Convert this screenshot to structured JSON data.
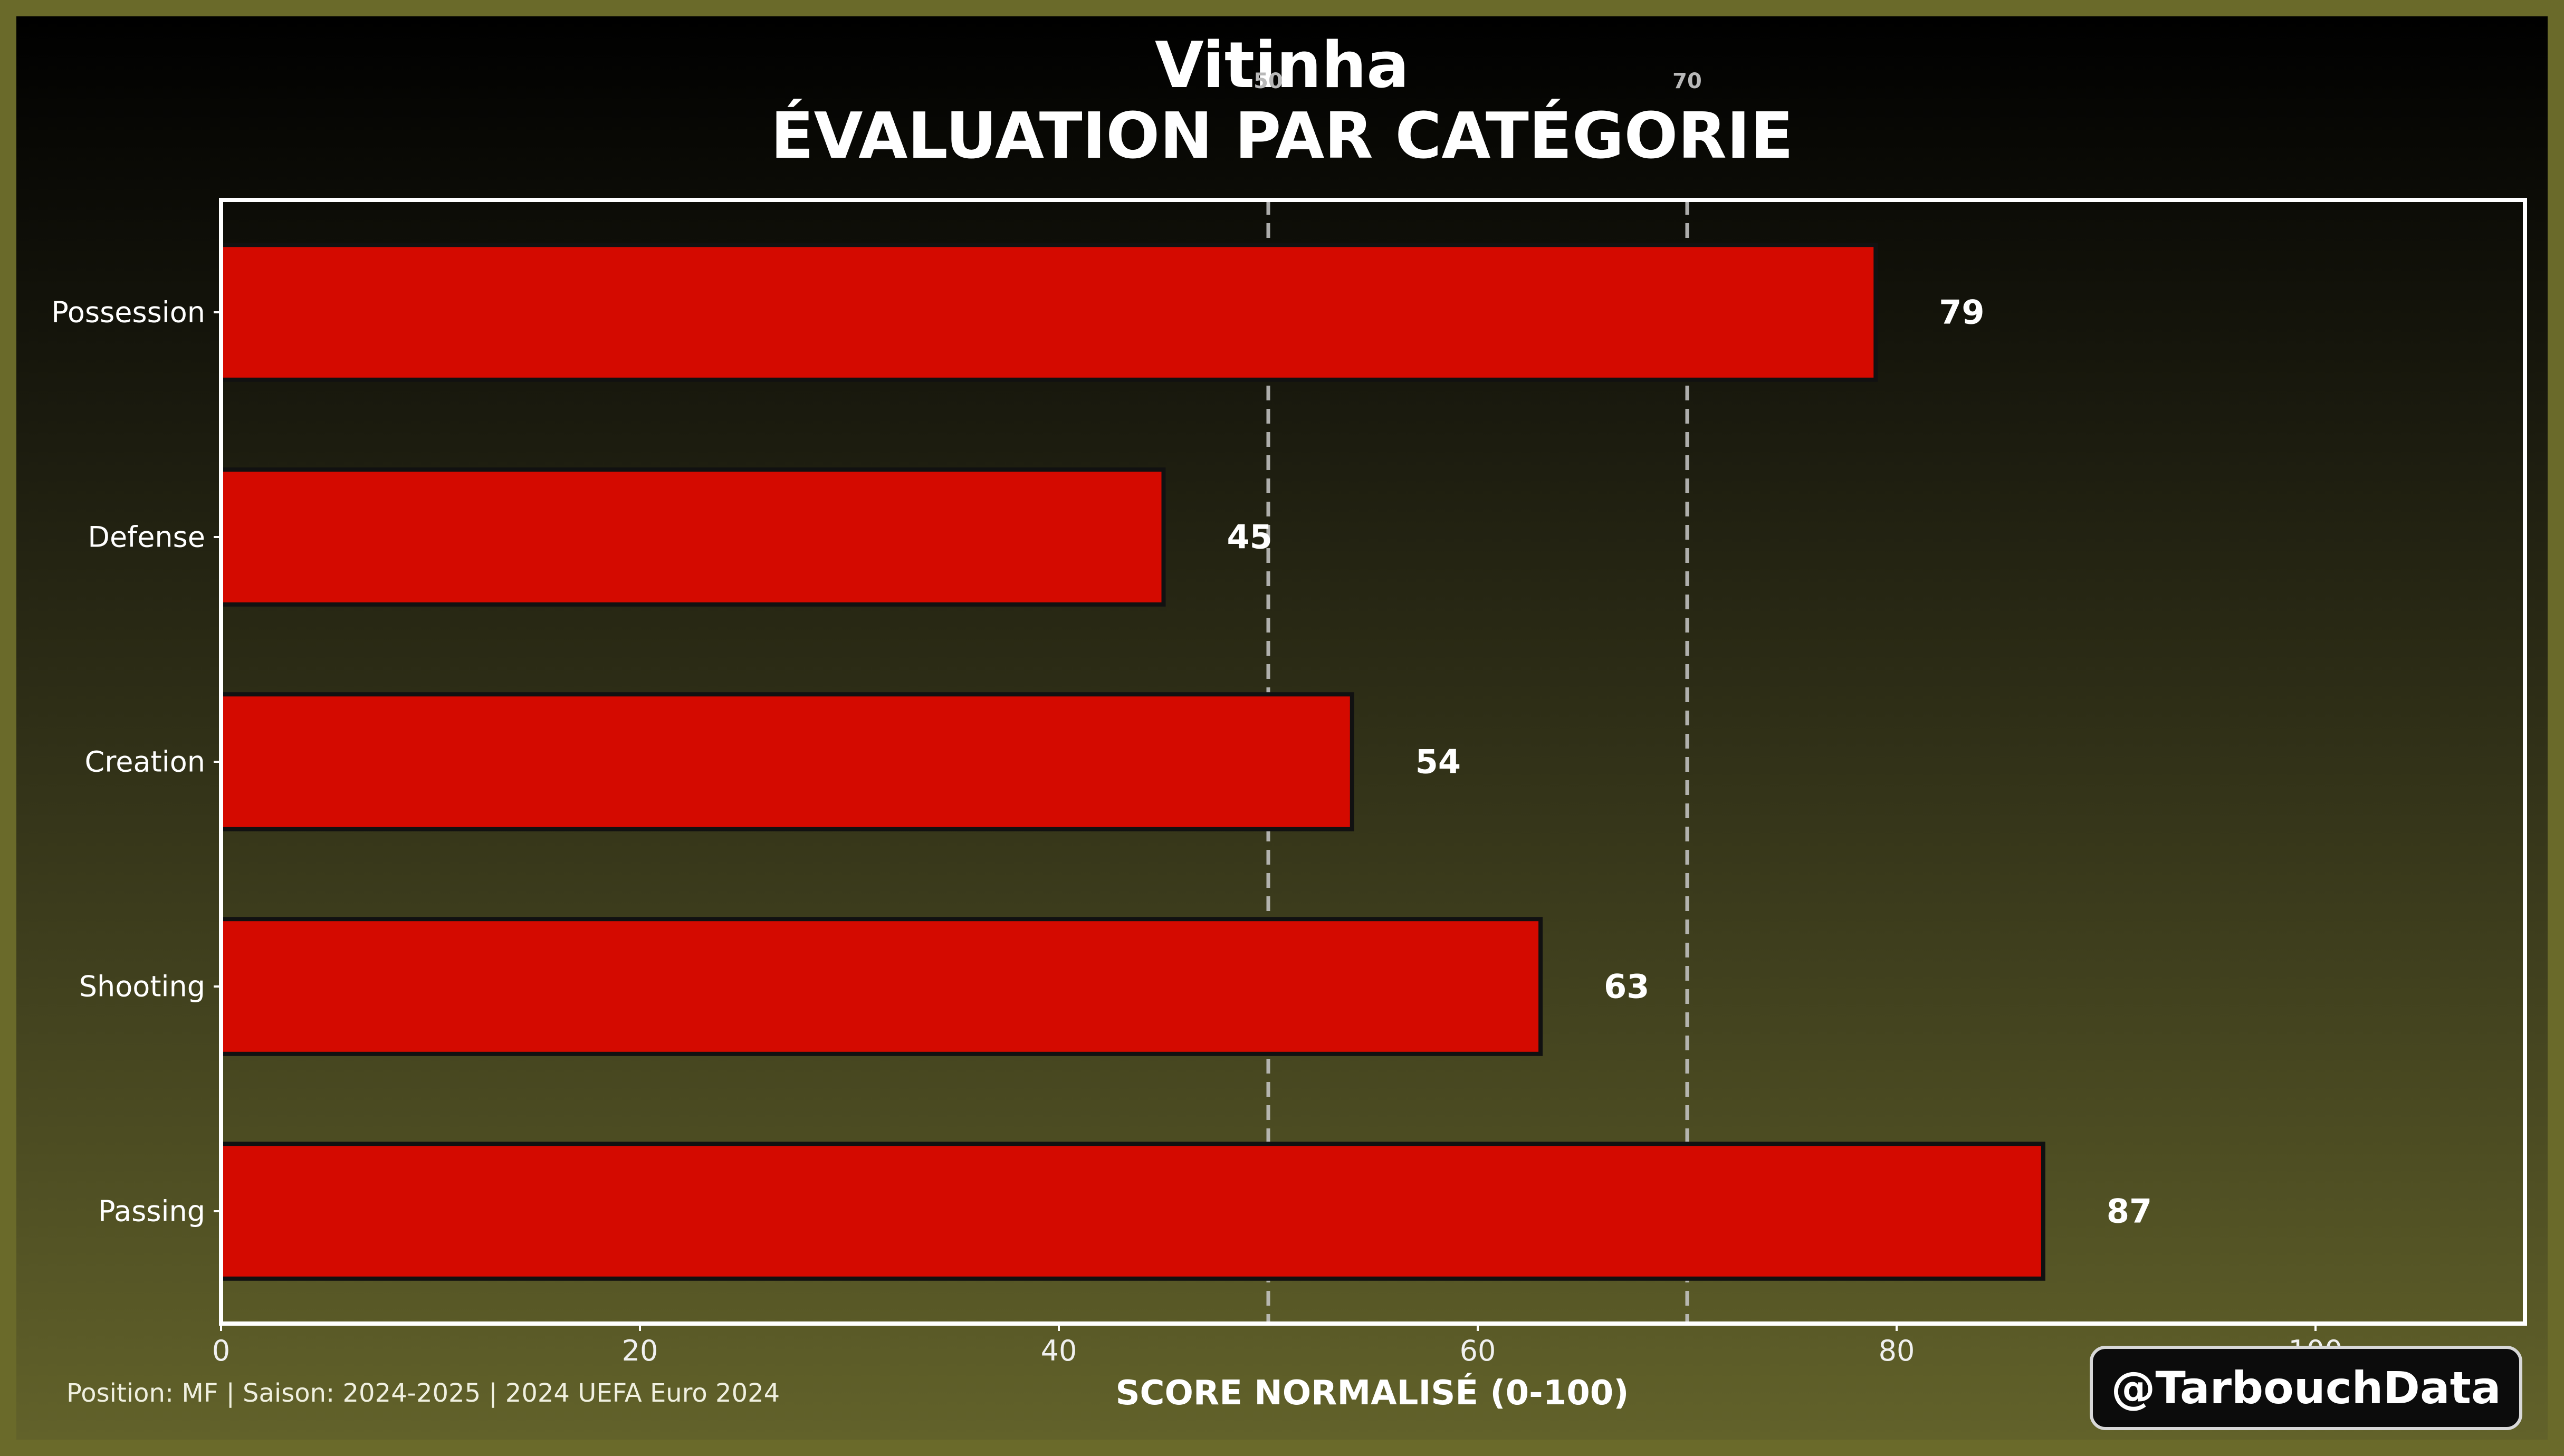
{
  "header": {
    "player": "Vitinha",
    "title": "ÉVALUATION PAR CATÉGORIE"
  },
  "footer": {
    "info": "Position: MF | Saison: 2024-2025 | 2024 UEFA Euro 2024",
    "handle": "@TarbouchData"
  },
  "colors": {
    "bar_fill": "#d40a00",
    "bar_edge": "#111111",
    "reference_line": "#c8c8c8",
    "text": "#ffffff"
  },
  "chart_data": {
    "type": "bar",
    "orientation": "horizontal",
    "title": "ÉVALUATION PAR CATÉGORIE",
    "subtitle": "Vitinha",
    "xlabel": "SCORE NORMALISÉ (0-100)",
    "ylabel": "",
    "categories": [
      "Possession",
      "Defense",
      "Creation",
      "Shooting",
      "Passing"
    ],
    "values": [
      79,
      45,
      54,
      63,
      87
    ],
    "data_labels": [
      "79",
      "45",
      "54",
      "63",
      "87"
    ],
    "xlim": [
      0,
      110
    ],
    "xticks": [
      0,
      20,
      40,
      60,
      80,
      100
    ],
    "xtick_labels": [
      "0",
      "20",
      "40",
      "60",
      "80",
      "100"
    ],
    "reference_lines": [
      {
        "value": 50,
        "label": "50"
      },
      {
        "value": 70,
        "label": "70"
      }
    ],
    "grid": false,
    "legend": "none"
  }
}
